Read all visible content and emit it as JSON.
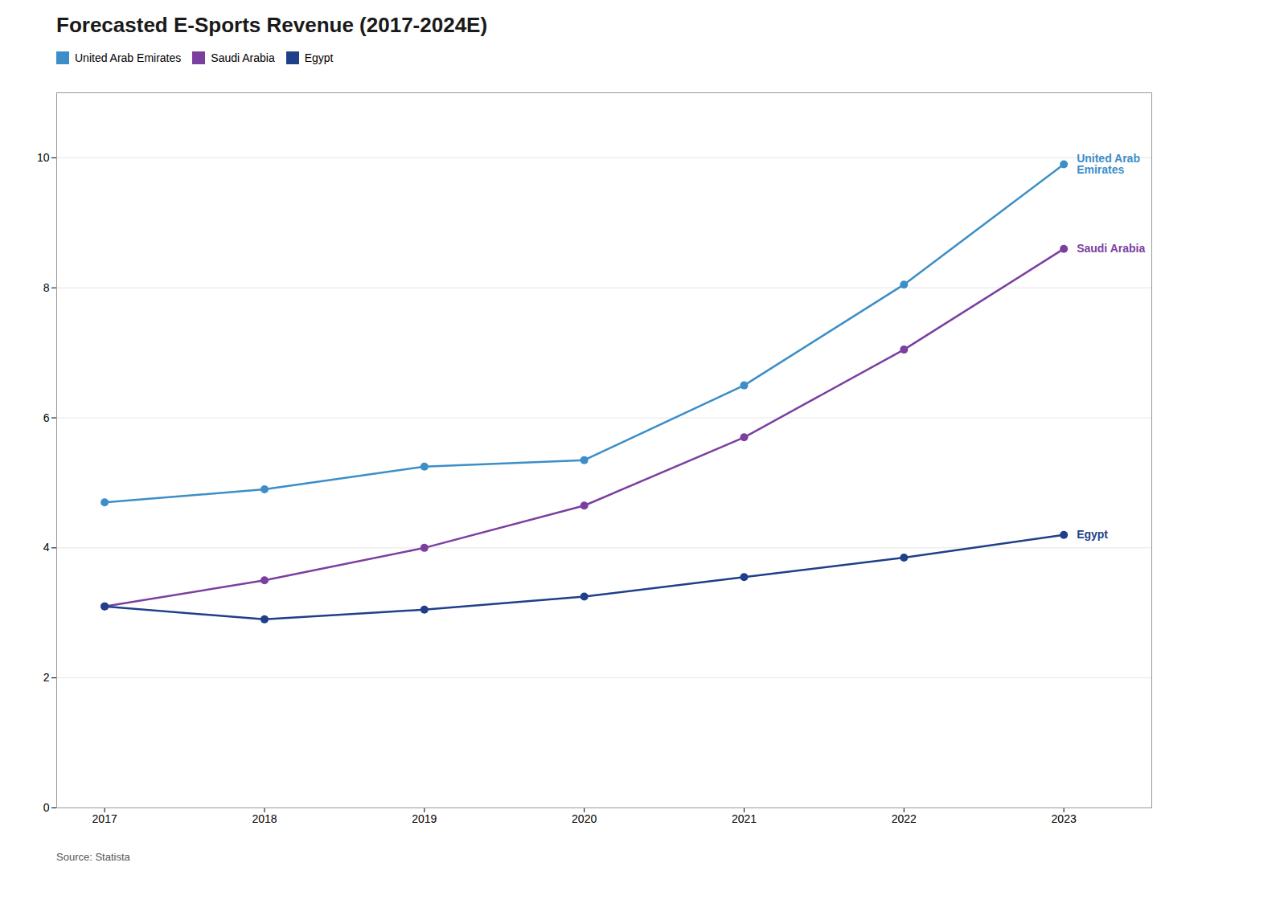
{
  "chart_data": {
    "type": "line",
    "title": "Forecasted E-Sports Revenue (2017-2024E)",
    "x": [
      2017,
      2018,
      2019,
      2020,
      2021,
      2022,
      2023
    ],
    "series": [
      {
        "name": "United Arab Emirates",
        "color": "#3B8EC8",
        "values": [
          4.7,
          4.9,
          5.25,
          5.35,
          6.5,
          8.05,
          9.9
        ]
      },
      {
        "name": "Saudi Arabia",
        "color": "#7B3FA0",
        "values": [
          3.1,
          3.5,
          4.0,
          4.65,
          5.7,
          7.05,
          8.6
        ]
      },
      {
        "name": "Egypt",
        "color": "#1F3F8A",
        "values": [
          3.1,
          2.9,
          3.05,
          3.25,
          3.55,
          3.85,
          4.2
        ]
      }
    ],
    "xlim": [
      2016.7,
      2023.55
    ],
    "xticks": [
      2017,
      2018,
      2019,
      2020,
      2021,
      2022,
      2023
    ],
    "ylim": [
      0,
      11
    ],
    "yticks": [
      0,
      2,
      4,
      6,
      8,
      10
    ],
    "grid": true,
    "legend": "top left",
    "marker": "circle",
    "annotations": [
      {
        "text": "United Arab\nEmirates",
        "x": 2023,
        "y": 9.9,
        "color": "#3B8EC8"
      },
      {
        "text": "Saudi Arabia",
        "x": 2023,
        "y": 8.6,
        "color": "#7B3FA0"
      },
      {
        "text": "Egypt",
        "x": 2023,
        "y": 4.2,
        "color": "#1F3F8A"
      }
    ],
    "source": "Source: Statista"
  }
}
